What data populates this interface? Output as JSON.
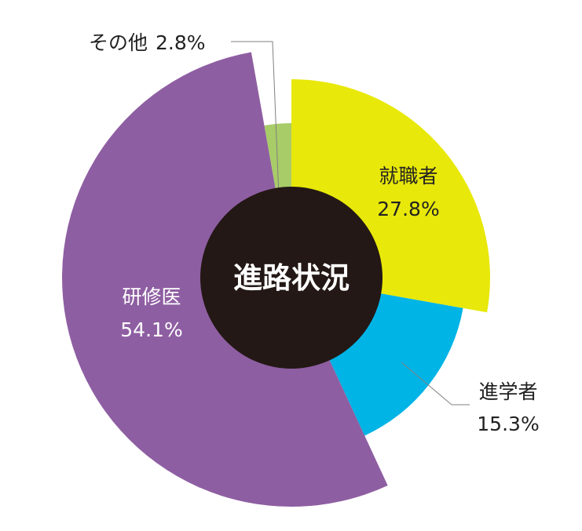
{
  "chart_data": {
    "type": "pie",
    "title": "進路状況",
    "slices": [
      {
        "label": "就職者",
        "value": 27.8,
        "value_label": "27.8%",
        "color": "#e8e80a"
      },
      {
        "label": "進学者",
        "value": 15.3,
        "value_label": "15.3%",
        "color": "#00b4e6"
      },
      {
        "label": "研修医",
        "value": 54.1,
        "value_label": "54.1%",
        "color": "#8e5ea2"
      },
      {
        "label": "その他",
        "value": 2.8,
        "value_label": "2.8%",
        "color": "#a8cc68"
      }
    ],
    "center_color": "#231815",
    "leader_color": "#808080"
  }
}
